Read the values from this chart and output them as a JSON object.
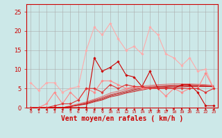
{
  "background_color": "#cce8e8",
  "grid_color": "#aaaaaa",
  "xlabel": "Vent moyen/en rafales ( km/h )",
  "xlabel_color": "#cc0000",
  "xlabel_fontsize": 7,
  "tick_color": "#cc0000",
  "xtick_labels": [
    "0",
    "1",
    "2",
    "3",
    "4",
    "5",
    "6",
    "7",
    "8",
    "9",
    "10",
    "11",
    "12",
    "13",
    "14",
    "15",
    "16",
    "17",
    "18",
    "19",
    "20",
    "21",
    "22",
    "23"
  ],
  "ylim": [
    0,
    27
  ],
  "xlim": [
    -0.5,
    23.5
  ],
  "yticks": [
    0,
    5,
    10,
    15,
    20,
    25
  ],
  "lines": [
    {
      "x": [
        0,
        1,
        2,
        3,
        4,
        5,
        6,
        7,
        8,
        9,
        10,
        11,
        12,
        13,
        14,
        15,
        16,
        17,
        18,
        19,
        20,
        21,
        22,
        23
      ],
      "y": [
        6.5,
        4.5,
        6.5,
        6.5,
        4,
        5,
        5.5,
        15,
        21,
        19,
        22,
        18,
        15,
        16,
        14,
        21,
        19,
        14,
        13,
        11,
        13,
        9.5,
        10,
        5
      ],
      "color": "#ffaaaa",
      "linewidth": 0.8,
      "marker": "D",
      "markersize": 1.8,
      "alpha": 1.0
    },
    {
      "x": [
        0,
        1,
        2,
        3,
        4,
        5,
        6,
        7,
        8,
        9,
        10,
        11,
        12,
        13,
        14,
        15,
        16,
        17,
        18,
        19,
        20,
        21,
        22,
        23
      ],
      "y": [
        0,
        0,
        1,
        4,
        1,
        4,
        2,
        5,
        4,
        7,
        7,
        6,
        5,
        5.5,
        5,
        5,
        5,
        3,
        5,
        4,
        5,
        5,
        9,
        5
      ],
      "color": "#ff8888",
      "linewidth": 0.8,
      "marker": "D",
      "markersize": 1.8,
      "alpha": 1.0
    },
    {
      "x": [
        0,
        1,
        2,
        3,
        4,
        5,
        6,
        7,
        8,
        9,
        10,
        11,
        12,
        13,
        14,
        15,
        16,
        17,
        18,
        19,
        20,
        21,
        22,
        23
      ],
      "y": [
        0,
        0,
        0,
        0,
        0,
        0,
        0,
        0,
        13,
        9.5,
        10.5,
        12,
        8.5,
        8,
        5.5,
        9.5,
        5,
        5,
        5,
        6,
        6,
        4,
        0.5,
        0.5
      ],
      "color": "#cc0000",
      "linewidth": 0.8,
      "marker": "D",
      "markersize": 1.8,
      "alpha": 1.0
    },
    {
      "x": [
        0,
        1,
        2,
        3,
        4,
        5,
        6,
        7,
        8,
        9,
        10,
        11,
        12,
        13,
        14,
        15,
        16,
        17,
        18,
        19,
        20,
        21,
        22,
        23
      ],
      "y": [
        0,
        0,
        0,
        0.5,
        1,
        1,
        2,
        5,
        5,
        4,
        6,
        5,
        6,
        5.5,
        5.5,
        5,
        5,
        5,
        5,
        5,
        5,
        5,
        4,
        5
      ],
      "color": "#dd3333",
      "linewidth": 0.8,
      "marker": "D",
      "markersize": 1.8,
      "alpha": 1.0
    },
    {
      "x": [
        0,
        1,
        2,
        3,
        4,
        5,
        6,
        7,
        8,
        9,
        10,
        11,
        12,
        13,
        14,
        15,
        16,
        17,
        18,
        19,
        20,
        21,
        22,
        23
      ],
      "y": [
        0,
        0,
        0,
        0,
        0,
        0.3,
        0.6,
        0.9,
        1.5,
        2.0,
        2.8,
        3.2,
        3.8,
        4.2,
        4.6,
        5.0,
        5.2,
        5.3,
        5.4,
        5.4,
        5.5,
        5.5,
        5.5,
        5.5
      ],
      "color": "#cc0000",
      "linewidth": 0.7,
      "marker": null,
      "markersize": 0,
      "alpha": 0.85
    },
    {
      "x": [
        0,
        1,
        2,
        3,
        4,
        5,
        6,
        7,
        8,
        9,
        10,
        11,
        12,
        13,
        14,
        15,
        16,
        17,
        18,
        19,
        20,
        21,
        22,
        23
      ],
      "y": [
        0,
        0,
        0,
        0,
        0,
        0.3,
        0.7,
        1.1,
        1.7,
        2.2,
        3.0,
        3.5,
        4.0,
        4.5,
        4.9,
        5.2,
        5.4,
        5.5,
        5.6,
        5.6,
        5.7,
        5.7,
        5.6,
        5.4
      ],
      "color": "#bb2222",
      "linewidth": 0.7,
      "marker": null,
      "markersize": 0,
      "alpha": 0.8
    },
    {
      "x": [
        0,
        1,
        2,
        3,
        4,
        5,
        6,
        7,
        8,
        9,
        10,
        11,
        12,
        13,
        14,
        15,
        16,
        17,
        18,
        19,
        20,
        21,
        22,
        23
      ],
      "y": [
        0,
        0,
        0,
        0,
        0,
        0.3,
        0.7,
        1.1,
        1.8,
        2.4,
        3.2,
        3.7,
        4.2,
        4.7,
        5.1,
        5.3,
        5.5,
        5.6,
        5.7,
        5.7,
        5.8,
        5.8,
        5.7,
        5.5
      ],
      "color": "#cc1111",
      "linewidth": 0.7,
      "marker": null,
      "markersize": 0,
      "alpha": 0.75
    },
    {
      "x": [
        0,
        1,
        2,
        3,
        4,
        5,
        6,
        7,
        8,
        9,
        10,
        11,
        12,
        13,
        14,
        15,
        16,
        17,
        18,
        19,
        20,
        21,
        22,
        23
      ],
      "y": [
        0,
        0,
        0,
        0,
        0,
        0.3,
        0.8,
        1.3,
        2.0,
        2.6,
        3.4,
        3.9,
        4.5,
        4.9,
        5.3,
        5.5,
        5.7,
        5.8,
        5.9,
        5.9,
        6.0,
        5.9,
        5.8,
        5.6
      ],
      "color": "#dd2222",
      "linewidth": 0.7,
      "marker": null,
      "markersize": 0,
      "alpha": 0.7
    },
    {
      "x": [
        0,
        1,
        2,
        3,
        4,
        5,
        6,
        7,
        8,
        9,
        10,
        11,
        12,
        13,
        14,
        15,
        16,
        17,
        18,
        19,
        20,
        21,
        22,
        23
      ],
      "y": [
        0,
        0,
        0,
        0,
        0,
        0.5,
        1.0,
        1.5,
        2.2,
        2.9,
        3.8,
        4.3,
        4.9,
        5.2,
        5.6,
        5.8,
        6.0,
        6.1,
        6.2,
        6.2,
        6.2,
        6.1,
        6.0,
        5.8
      ],
      "color": "#ee3333",
      "linewidth": 0.7,
      "marker": null,
      "markersize": 0,
      "alpha": 0.65
    }
  ],
  "wind_arrows": {
    "x": [
      0,
      1,
      2,
      3,
      4,
      5,
      6,
      7,
      8,
      9,
      10,
      11,
      12,
      13,
      14,
      15,
      16,
      17,
      18,
      19,
      20,
      21,
      22,
      23
    ],
    "angles_deg": [
      270,
      270,
      270,
      270,
      270,
      270,
      270,
      270,
      260,
      265,
      255,
      250,
      248,
      242,
      240,
      215,
      205,
      210,
      202,
      192,
      190,
      187,
      186,
      270
    ],
    "color": "#cc0000"
  }
}
